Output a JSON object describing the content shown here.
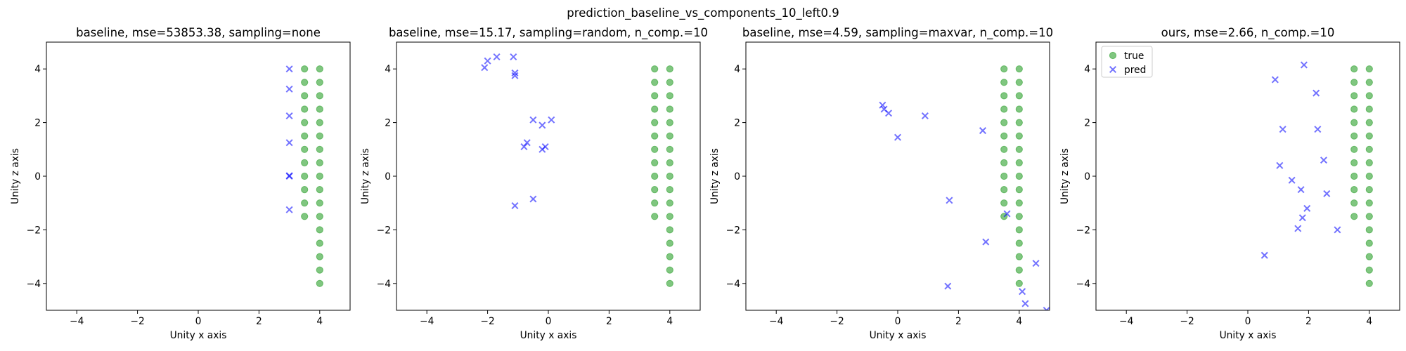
{
  "figure": {
    "suptitle": "prediction_baseline_vs_components_10_left0.9"
  },
  "colors": {
    "true": "#2ca02c",
    "pred": "#0000ff"
  },
  "chart_data": [
    {
      "type": "scatter",
      "title": "baseline, mse=53853.38, sampling=none",
      "xlabel": "Unity x axis",
      "ylabel": "Unity z axis",
      "xlim": [
        -5,
        5
      ],
      "ylim": [
        -5,
        5
      ],
      "xticks": [
        -4,
        -2,
        0,
        2,
        4
      ],
      "yticks": [
        -4,
        -2,
        0,
        2,
        4
      ],
      "grid": false,
      "legend": null,
      "series": [
        {
          "key": "true",
          "marker": "circle",
          "points": [
            [
              3.5,
              4
            ],
            [
              3.5,
              3.5
            ],
            [
              3.5,
              3
            ],
            [
              3.5,
              2.5
            ],
            [
              3.5,
              2
            ],
            [
              3.5,
              1.5
            ],
            [
              3.5,
              1
            ],
            [
              3.5,
              0.5
            ],
            [
              3.5,
              0
            ],
            [
              3.5,
              -0.5
            ],
            [
              3.5,
              -1
            ],
            [
              3.5,
              -1.5
            ],
            [
              4,
              4
            ],
            [
              4,
              3.5
            ],
            [
              4,
              3
            ],
            [
              4,
              2.5
            ],
            [
              4,
              2
            ],
            [
              4,
              1.5
            ],
            [
              4,
              1
            ],
            [
              4,
              0.5
            ],
            [
              4,
              0
            ],
            [
              4,
              -0.5
            ],
            [
              4,
              -1
            ],
            [
              4,
              -1.5
            ],
            [
              4,
              -2
            ],
            [
              4,
              -2.5
            ],
            [
              4,
              -3
            ],
            [
              4,
              -3.5
            ],
            [
              4,
              -4
            ]
          ]
        },
        {
          "key": "pred",
          "marker": "x",
          "points": [
            [
              3,
              4
            ],
            [
              3,
              3.25
            ],
            [
              3,
              2.25
            ],
            [
              3,
              1.25
            ],
            [
              3,
              0
            ],
            [
              3,
              0.02
            ],
            [
              3,
              -1.25
            ]
          ]
        }
      ]
    },
    {
      "type": "scatter",
      "title": "baseline, mse=15.17, sampling=random, n_comp.=10",
      "xlabel": "Unity x axis",
      "ylabel": "Unity z axis",
      "xlim": [
        -5,
        5
      ],
      "ylim": [
        -5,
        5
      ],
      "xticks": [
        -4,
        -2,
        0,
        2,
        4
      ],
      "yticks": [
        -4,
        -2,
        0,
        2,
        4
      ],
      "grid": false,
      "legend": null,
      "series": [
        {
          "key": "true",
          "marker": "circle",
          "points": [
            [
              3.5,
              4
            ],
            [
              3.5,
              3.5
            ],
            [
              3.5,
              3
            ],
            [
              3.5,
              2.5
            ],
            [
              3.5,
              2
            ],
            [
              3.5,
              1.5
            ],
            [
              3.5,
              1
            ],
            [
              3.5,
              0.5
            ],
            [
              3.5,
              0
            ],
            [
              3.5,
              -0.5
            ],
            [
              3.5,
              -1
            ],
            [
              3.5,
              -1.5
            ],
            [
              4,
              4
            ],
            [
              4,
              3.5
            ],
            [
              4,
              3
            ],
            [
              4,
              2.5
            ],
            [
              4,
              2
            ],
            [
              4,
              1.5
            ],
            [
              4,
              1
            ],
            [
              4,
              0.5
            ],
            [
              4,
              0
            ],
            [
              4,
              -0.5
            ],
            [
              4,
              -1
            ],
            [
              4,
              -1.5
            ],
            [
              4,
              -2
            ],
            [
              4,
              -2.5
            ],
            [
              4,
              -3
            ],
            [
              4,
              -3.5
            ],
            [
              4,
              -4
            ]
          ]
        },
        {
          "key": "pred",
          "marker": "x",
          "points": [
            [
              -2.1,
              4.05
            ],
            [
              -2.0,
              4.3
            ],
            [
              -1.7,
              4.45
            ],
            [
              -1.15,
              4.45
            ],
            [
              -1.1,
              3.85
            ],
            [
              -1.1,
              3.75
            ],
            [
              -0.5,
              2.1
            ],
            [
              0.1,
              2.1
            ],
            [
              -0.2,
              1.9
            ],
            [
              -0.7,
              1.25
            ],
            [
              -0.8,
              1.1
            ],
            [
              -0.1,
              1.1
            ],
            [
              -0.2,
              1.0
            ],
            [
              -0.5,
              -0.85
            ],
            [
              -1.1,
              -1.1
            ]
          ]
        }
      ]
    },
    {
      "type": "scatter",
      "title": "baseline, mse=4.59, sampling=maxvar, n_comp.=10",
      "xlabel": "Unity x axis",
      "ylabel": "Unity z axis",
      "xlim": [
        -5,
        5
      ],
      "ylim": [
        -5,
        5
      ],
      "xticks": [
        -4,
        -2,
        0,
        2,
        4
      ],
      "yticks": [
        -4,
        -2,
        0,
        2,
        4
      ],
      "grid": false,
      "legend": null,
      "series": [
        {
          "key": "true",
          "marker": "circle",
          "points": [
            [
              3.5,
              4
            ],
            [
              3.5,
              3.5
            ],
            [
              3.5,
              3
            ],
            [
              3.5,
              2.5
            ],
            [
              3.5,
              2
            ],
            [
              3.5,
              1.5
            ],
            [
              3.5,
              1
            ],
            [
              3.5,
              0.5
            ],
            [
              3.5,
              0
            ],
            [
              3.5,
              -0.5
            ],
            [
              3.5,
              -1
            ],
            [
              3.5,
              -1.5
            ],
            [
              4,
              4
            ],
            [
              4,
              3.5
            ],
            [
              4,
              3
            ],
            [
              4,
              2.5
            ],
            [
              4,
              2
            ],
            [
              4,
              1.5
            ],
            [
              4,
              1
            ],
            [
              4,
              0.5
            ],
            [
              4,
              0
            ],
            [
              4,
              -0.5
            ],
            [
              4,
              -1
            ],
            [
              4,
              -1.5
            ],
            [
              4,
              -2
            ],
            [
              4,
              -2.5
            ],
            [
              4,
              -3
            ],
            [
              4,
              -3.5
            ],
            [
              4,
              -4
            ]
          ]
        },
        {
          "key": "pred",
          "marker": "x",
          "points": [
            [
              -0.5,
              2.65
            ],
            [
              -0.45,
              2.5
            ],
            [
              -0.3,
              2.35
            ],
            [
              0,
              1.45
            ],
            [
              0.9,
              2.25
            ],
            [
              2.8,
              1.7
            ],
            [
              1.7,
              -0.9
            ],
            [
              3.6,
              -1.4
            ],
            [
              2.9,
              -2.45
            ],
            [
              1.65,
              -4.1
            ],
            [
              4.1,
              -4.3
            ],
            [
              4.2,
              -4.75
            ],
            [
              4.55,
              -3.25
            ],
            [
              4.9,
              -5.0
            ]
          ]
        }
      ]
    },
    {
      "type": "scatter",
      "title": "ours, mse=2.66, n_comp.=10",
      "xlabel": "Unity x axis",
      "ylabel": "Unity z axis",
      "xlim": [
        -5,
        5
      ],
      "ylim": [
        -5,
        5
      ],
      "xticks": [
        -4,
        -2,
        0,
        2,
        4
      ],
      "yticks": [
        -4,
        -2,
        0,
        2,
        4
      ],
      "grid": false,
      "legend": {
        "placement": "top-left",
        "entries": [
          {
            "key": "true",
            "label": "true"
          },
          {
            "key": "pred",
            "label": "pred"
          }
        ]
      },
      "series": [
        {
          "key": "true",
          "marker": "circle",
          "points": [
            [
              3.5,
              4
            ],
            [
              3.5,
              3.5
            ],
            [
              3.5,
              3
            ],
            [
              3.5,
              2.5
            ],
            [
              3.5,
              2
            ],
            [
              3.5,
              1.5
            ],
            [
              3.5,
              1
            ],
            [
              3.5,
              0.5
            ],
            [
              3.5,
              0
            ],
            [
              3.5,
              -0.5
            ],
            [
              3.5,
              -1
            ],
            [
              3.5,
              -1.5
            ],
            [
              4,
              4
            ],
            [
              4,
              3.5
            ],
            [
              4,
              3
            ],
            [
              4,
              2.5
            ],
            [
              4,
              2
            ],
            [
              4,
              1.5
            ],
            [
              4,
              1
            ],
            [
              4,
              0.5
            ],
            [
              4,
              0
            ],
            [
              4,
              -0.5
            ],
            [
              4,
              -1
            ],
            [
              4,
              -1.5
            ],
            [
              4,
              -2
            ],
            [
              4,
              -2.5
            ],
            [
              4,
              -3
            ],
            [
              4,
              -3.5
            ],
            [
              4,
              -4
            ]
          ]
        },
        {
          "key": "pred",
          "marker": "x",
          "points": [
            [
              1.85,
              4.15
            ],
            [
              0.9,
              3.6
            ],
            [
              2.25,
              3.1
            ],
            [
              1.15,
              1.75
            ],
            [
              2.3,
              1.75
            ],
            [
              1.05,
              0.4
            ],
            [
              2.5,
              0.6
            ],
            [
              1.45,
              -0.15
            ],
            [
              1.75,
              -0.5
            ],
            [
              2.6,
              -0.65
            ],
            [
              1.95,
              -1.2
            ],
            [
              1.8,
              -1.55
            ],
            [
              1.65,
              -1.95
            ],
            [
              2.95,
              -2.0
            ],
            [
              0.55,
              -2.95
            ]
          ]
        }
      ]
    }
  ]
}
